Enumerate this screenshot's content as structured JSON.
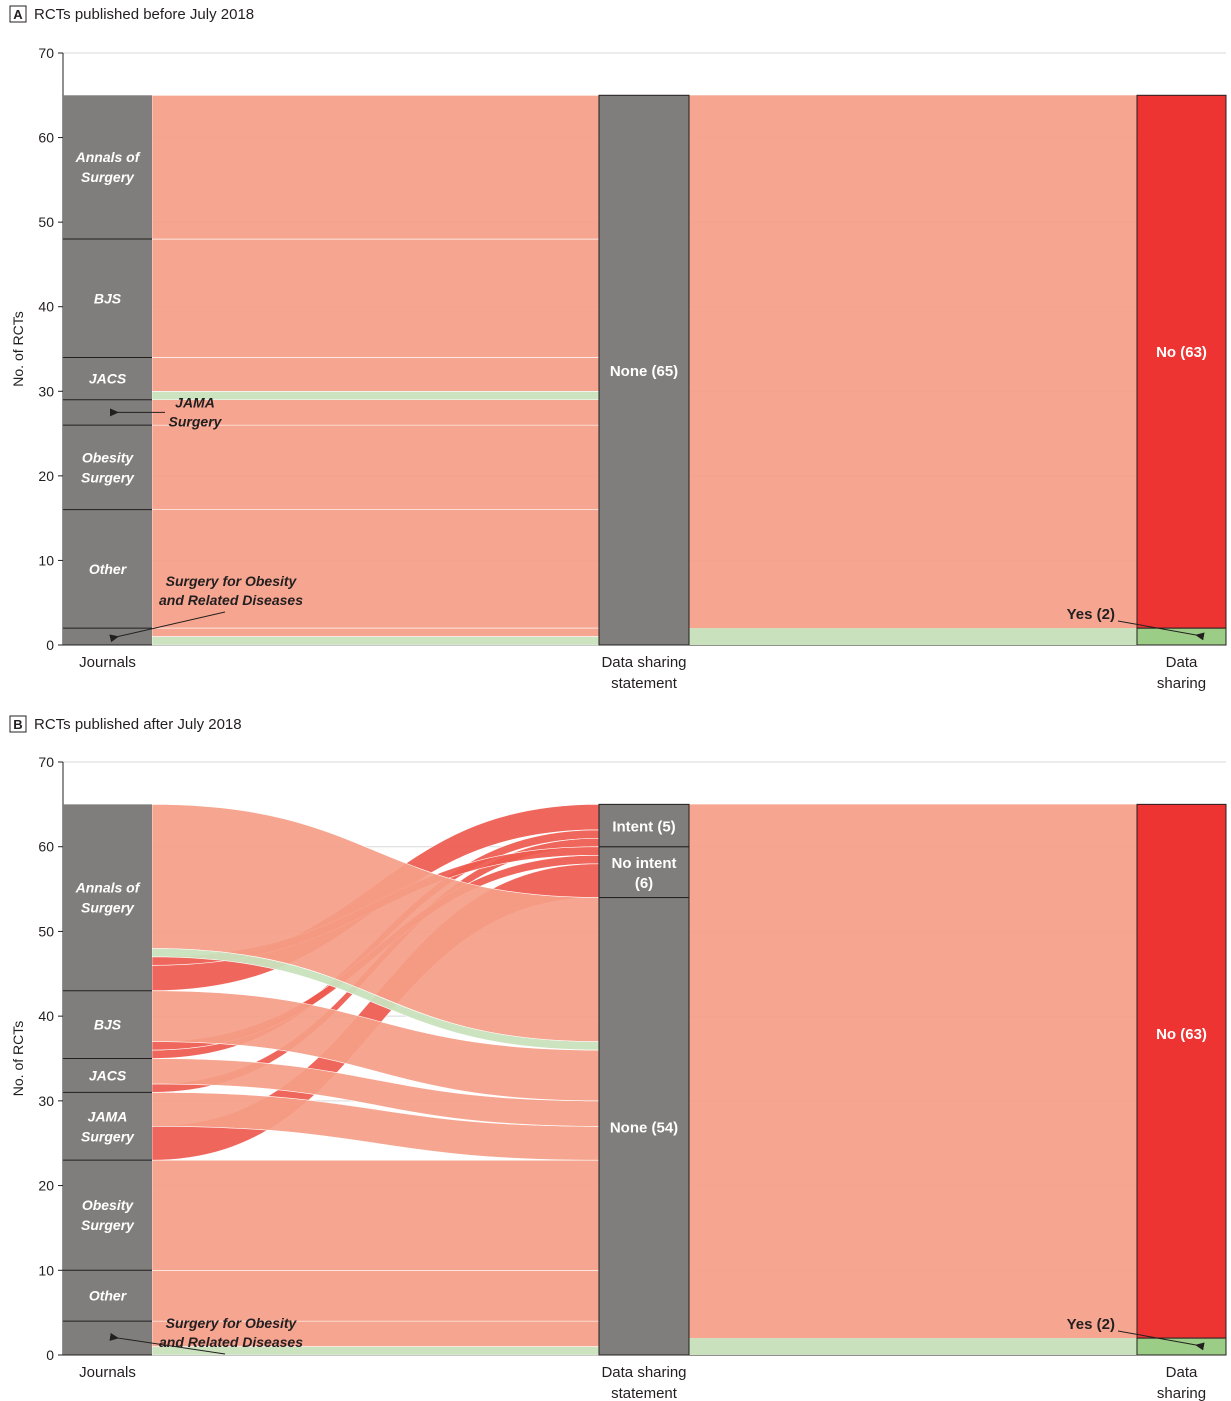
{
  "chart_data": [
    {
      "type": "alluvial",
      "panel": "A",
      "title": "RCTs published before July 2018",
      "ylabel": "No. of RCTs",
      "ylim": [
        0,
        70
      ],
      "yticks": [
        0,
        10,
        20,
        30,
        40,
        50,
        60,
        70
      ],
      "grid": true,
      "axes": [
        "Journals",
        "Data sharing statement",
        "Data sharing"
      ],
      "journals": [
        {
          "name": "Surgery for Obesity and Related Diseases",
          "count": 2
        },
        {
          "name": "Other",
          "count": 14
        },
        {
          "name": "Obesity Surgery",
          "count": 10
        },
        {
          "name": "JAMA Surgery",
          "count": 3
        },
        {
          "name": "JACS",
          "count": 5
        },
        {
          "name": "BJS",
          "count": 14
        },
        {
          "name": "Annals of Surgery",
          "count": 17
        }
      ],
      "statement": [
        {
          "label": "None (65)",
          "count": 65
        }
      ],
      "sharing": [
        {
          "label": "Yes (2)",
          "count": 2
        },
        {
          "label": "No (63)",
          "count": 63
        }
      ],
      "flows": [
        {
          "journal": "Surgery for Obesity and Related Diseases",
          "statement": "None",
          "sharing": "Yes",
          "count": 1
        },
        {
          "journal": "Surgery for Obesity and Related Diseases",
          "statement": "None",
          "sharing": "No",
          "count": 1
        },
        {
          "journal": "Other",
          "statement": "None",
          "sharing": "No",
          "count": 14
        },
        {
          "journal": "Obesity Surgery",
          "statement": "None",
          "sharing": "No",
          "count": 10
        },
        {
          "journal": "JAMA Surgery",
          "statement": "None",
          "sharing": "No",
          "count": 3
        },
        {
          "journal": "JACS",
          "statement": "None",
          "sharing": "Yes",
          "count": 1
        },
        {
          "journal": "JACS",
          "statement": "None",
          "sharing": "No",
          "count": 4
        },
        {
          "journal": "BJS",
          "statement": "None",
          "sharing": "No",
          "count": 14
        },
        {
          "journal": "Annals of Surgery",
          "statement": "None",
          "sharing": "No",
          "count": 17
        }
      ],
      "annotations": [
        "JAMA Surgery",
        "Surgery for Obesity and Related Diseases",
        "Yes (2)"
      ],
      "colors": {
        "node": "#7f7e7c",
        "flow_no": "#f59e87",
        "flow_yes": "#c9e2bd",
        "no_bar": "#ee3433",
        "yes_bar": "#9ccd86"
      }
    },
    {
      "type": "alluvial",
      "panel": "B",
      "title": "RCTs published after July 2018",
      "ylabel": "No. of RCTs",
      "ylim": [
        0,
        70
      ],
      "yticks": [
        0,
        10,
        20,
        30,
        40,
        50,
        60,
        70
      ],
      "grid": true,
      "axes": [
        "Journals",
        "Data sharing statement",
        "Data sharing"
      ],
      "journals": [
        {
          "name": "Surgery for Obesity and Related Diseases",
          "count": 4
        },
        {
          "name": "Other",
          "count": 6
        },
        {
          "name": "Obesity Surgery",
          "count": 13
        },
        {
          "name": "JAMA Surgery",
          "count": 8
        },
        {
          "name": "JACS",
          "count": 4
        },
        {
          "name": "BJS",
          "count": 8
        },
        {
          "name": "Annals of Surgery",
          "count": 22
        }
      ],
      "statement": [
        {
          "label": "None (54)",
          "count": 54
        },
        {
          "label": "No intent (6)",
          "count": 6
        },
        {
          "label": "Intent (5)",
          "count": 5
        }
      ],
      "sharing": [
        {
          "label": "Yes (2)",
          "count": 2
        },
        {
          "label": "No (63)",
          "count": 63
        }
      ],
      "flows": [
        {
          "journal": "Surgery for Obesity and Related Diseases",
          "statement": "None",
          "sharing": "Yes",
          "count": 1
        },
        {
          "journal": "Surgery for Obesity and Related Diseases",
          "statement": "None",
          "sharing": "No",
          "count": 3
        },
        {
          "journal": "Other",
          "statement": "None",
          "sharing": "No",
          "count": 6
        },
        {
          "journal": "Obesity Surgery",
          "statement": "None",
          "sharing": "No",
          "count": 13
        },
        {
          "journal": "JAMA Surgery",
          "statement": "No intent",
          "sharing": "No",
          "count": 4
        },
        {
          "journal": "JAMA Surgery",
          "statement": "None",
          "sharing": "No",
          "count": 4
        },
        {
          "journal": "JACS",
          "statement": "Intent",
          "sharing": "No",
          "count": 1
        },
        {
          "journal": "JACS",
          "statement": "None",
          "sharing": "No",
          "count": 3
        },
        {
          "journal": "BJS",
          "statement": "Intent",
          "sharing": "No",
          "count": 1
        },
        {
          "journal": "BJS",
          "statement": "No intent",
          "sharing": "No",
          "count": 1
        },
        {
          "journal": "BJS",
          "statement": "None",
          "sharing": "No",
          "count": 6
        },
        {
          "journal": "Annals of Surgery",
          "statement": "Intent",
          "sharing": "No",
          "count": 3
        },
        {
          "journal": "Annals of Surgery",
          "statement": "No intent",
          "sharing": "No",
          "count": 1
        },
        {
          "journal": "Annals of Surgery",
          "statement": "None",
          "sharing": "Yes",
          "count": 1
        },
        {
          "journal": "Annals of Surgery",
          "statement": "None",
          "sharing": "No",
          "count": 17
        }
      ],
      "annotations": [
        "Surgery for Obesity and Related Diseases",
        "Yes (2)"
      ],
      "colors": {
        "node": "#7f7e7c",
        "flow_no": "#f59e87",
        "flow_yes": "#c9e2bd",
        "flow_statement": "#ee5a4e",
        "no_bar": "#ee3433",
        "yes_bar": "#9ccd86"
      }
    }
  ]
}
